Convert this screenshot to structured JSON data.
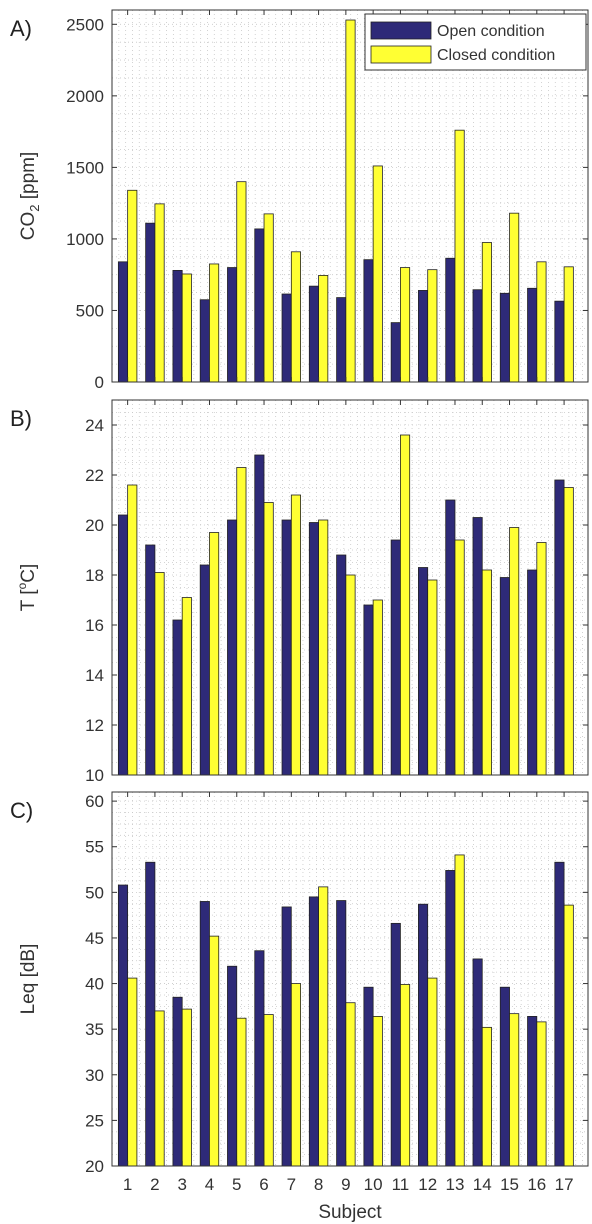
{
  "colors": {
    "open": "#2e2a78",
    "closed": "#ffff33",
    "grid": "#c8c8c8",
    "axis": "#333333"
  },
  "legend": {
    "open_label": "Open condition",
    "closed_label": "Closed condition"
  },
  "xlabel": "Subject",
  "chart_data": [
    {
      "type": "bar",
      "panel_label": "A)",
      "ylabel": "CO₂ [ppm]",
      "ylim": [
        0,
        2600
      ],
      "yticks": [
        0,
        500,
        1000,
        1500,
        2000,
        2500
      ],
      "grid": true,
      "legend": "top-right",
      "categories": [
        "1",
        "2",
        "3",
        "4",
        "5",
        "6",
        "7",
        "8",
        "9",
        "10",
        "11",
        "12",
        "13",
        "14",
        "15",
        "16",
        "17"
      ],
      "series": [
        {
          "name": "Open condition",
          "values": [
            840,
            1110,
            780,
            575,
            800,
            1070,
            615,
            670,
            590,
            855,
            415,
            640,
            865,
            645,
            620,
            655,
            565
          ]
        },
        {
          "name": "Closed condition",
          "values": [
            1340,
            1245,
            755,
            825,
            1400,
            1175,
            910,
            745,
            2530,
            1510,
            800,
            785,
            1760,
            975,
            1180,
            840,
            805
          ]
        }
      ]
    },
    {
      "type": "bar",
      "panel_label": "B)",
      "ylabel": "T [°C]",
      "ylim": [
        10,
        25
      ],
      "yticks": [
        10,
        12,
        14,
        16,
        18,
        20,
        22,
        24
      ],
      "grid": true,
      "categories": [
        "1",
        "2",
        "3",
        "4",
        "5",
        "6",
        "7",
        "8",
        "9",
        "10",
        "11",
        "12",
        "13",
        "14",
        "15",
        "16",
        "17"
      ],
      "series": [
        {
          "name": "Open condition",
          "values": [
            20.4,
            19.2,
            16.2,
            18.4,
            20.2,
            22.8,
            20.2,
            20.1,
            18.8,
            16.8,
            19.4,
            18.3,
            21.0,
            20.3,
            17.9,
            18.2,
            21.8
          ]
        },
        {
          "name": "Closed condition",
          "values": [
            21.6,
            18.1,
            17.1,
            19.7,
            22.3,
            20.9,
            21.2,
            20.2,
            18.0,
            17.0,
            23.6,
            17.8,
            19.4,
            18.2,
            19.9,
            19.3,
            21.5
          ]
        }
      ]
    },
    {
      "type": "bar",
      "panel_label": "C)",
      "ylabel": "Leq [dB]",
      "ylim": [
        20,
        61
      ],
      "yticks": [
        20,
        25,
        30,
        35,
        40,
        45,
        50,
        55,
        60
      ],
      "grid": true,
      "categories": [
        "1",
        "2",
        "3",
        "4",
        "5",
        "6",
        "7",
        "8",
        "9",
        "10",
        "11",
        "12",
        "13",
        "14",
        "15",
        "16",
        "17"
      ],
      "series": [
        {
          "name": "Open condition",
          "values": [
            50.8,
            53.3,
            38.5,
            49.0,
            41.9,
            43.6,
            48.4,
            49.5,
            49.1,
            39.6,
            46.6,
            48.7,
            52.4,
            42.7,
            39.6,
            36.4,
            53.3
          ]
        },
        {
          "name": "Closed condition",
          "values": [
            40.6,
            37.0,
            37.2,
            45.2,
            36.2,
            36.6,
            40.0,
            50.6,
            37.9,
            36.4,
            39.9,
            40.6,
            54.1,
            35.2,
            36.7,
            35.8,
            48.6
          ]
        }
      ]
    }
  ]
}
